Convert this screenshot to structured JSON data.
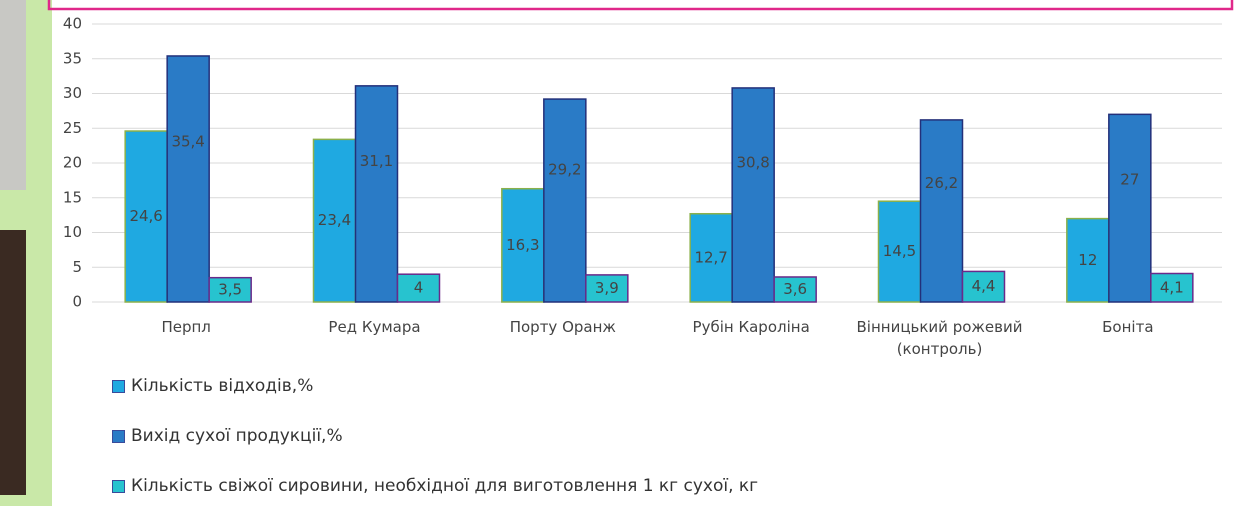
{
  "chart_data": {
    "type": "bar",
    "categories": [
      "Перпл",
      "Ред Кумара",
      "Порту Оранж",
      "Рубін Кароліна",
      "Вінницький рожевий (контроль)",
      "Боніта"
    ],
    "series": [
      {
        "name": "Кількість відходів,%",
        "color": "#1fa9e1",
        "values": [
          24.6,
          23.4,
          16.3,
          12.7,
          14.5,
          12
        ],
        "value_labels": [
          "24,6",
          "23,4",
          "16,3",
          "12,7",
          "14,5",
          "12"
        ]
      },
      {
        "name": "Вихід сухої продукції,%",
        "color": "#2a7bc6",
        "values": [
          35.4,
          31.1,
          29.2,
          30.8,
          26.2,
          27
        ],
        "value_labels": [
          "35,4",
          "31,1",
          "29,2",
          "30,8",
          "26,2",
          "27"
        ]
      },
      {
        "name": "Кількість свіжої сировини, необхідної для виготовлення 1 кг сухої, кг",
        "color": "#27c3cf",
        "values": [
          3.5,
          4,
          3.9,
          3.6,
          4.4,
          4.1
        ],
        "value_labels": [
          "3,5",
          "4",
          "3,9",
          "3,6",
          "4,4",
          "4,1"
        ]
      }
    ],
    "ylim": [
      0,
      40
    ],
    "yticks": [
      0,
      5,
      10,
      15,
      20,
      25,
      30,
      35,
      40
    ],
    "grid": true,
    "legend": "bottom"
  }
}
